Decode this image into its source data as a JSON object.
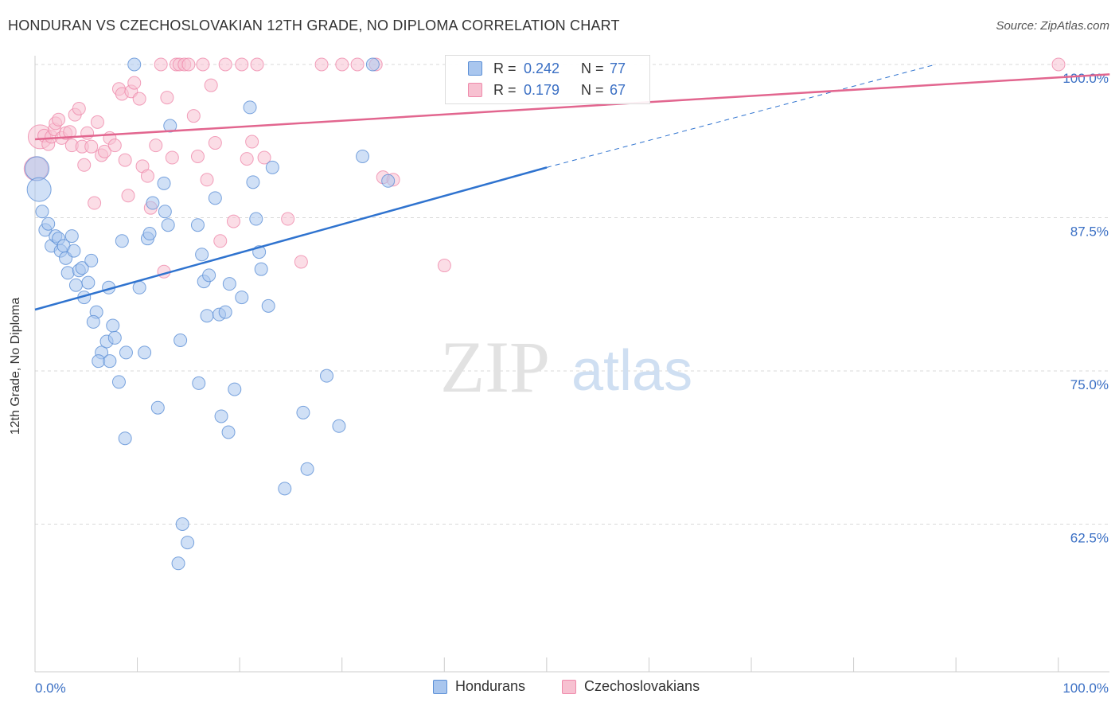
{
  "header": {
    "title": "HONDURAN VS CZECHOSLOVAKIAN 12TH GRADE, NO DIPLOMA CORRELATION CHART",
    "source": "Source: ZipAtlas.com"
  },
  "watermark": {
    "zip": "ZIP",
    "atlas": "atlas"
  },
  "stats": {
    "series": [
      {
        "r_label": "R =",
        "r_value": "0.242",
        "n_label": "N =",
        "n_value": "77",
        "color": "#5b8fd6"
      },
      {
        "r_label": "R =",
        "r_value": "0.179",
        "n_label": "N =",
        "n_value": "67",
        "color": "#ef8aab"
      }
    ]
  },
  "legend": {
    "items": [
      {
        "label": "Hondurans",
        "color": "#5b8fd6"
      },
      {
        "label": "Czechoslovakians",
        "color": "#ef8aab"
      }
    ]
  },
  "colors": {
    "blue_fill": "#a9c6ee",
    "blue_stroke": "#5b8fd6",
    "blue_line": "#2f73cf",
    "pink_fill": "#f7c1d1",
    "pink_stroke": "#ef8aab",
    "pink_line": "#e2668f",
    "tick_label": "#3a6fc4",
    "grid": "#d9d9d9"
  },
  "chart_data": {
    "type": "scatter",
    "title": "HONDURAN VS CZECHOSLOVAKIAN 12TH GRADE, NO DIPLOMA CORRELATION CHART",
    "xlabel": "",
    "ylabel": "12th Grade, No Diploma",
    "xlim": [
      0,
      105
    ],
    "ylim": [
      51.5,
      101.5
    ],
    "x_tick_labels": [
      "0.0%",
      "100.0%"
    ],
    "y_ticks": [
      62.5,
      75.0,
      87.5,
      100.0
    ],
    "y_tick_labels": [
      "62.5%",
      "75.0%",
      "87.5%",
      "100.0%"
    ],
    "grid": "horizontal dashed",
    "legend_position": "bottom-center",
    "series": [
      {
        "name": "Hondurans",
        "r": 0.242,
        "n": 77,
        "trend": {
          "x": [
            0,
            50
          ],
          "y": [
            80.0,
            91.6
          ]
        },
        "trend_extension": {
          "x": [
            50,
            88
          ],
          "y": [
            91.6,
            100.0
          ]
        },
        "points": [
          [
            0.2,
            91.5
          ],
          [
            0.4,
            89.8
          ],
          [
            0.7,
            88.0
          ],
          [
            1.0,
            86.5
          ],
          [
            1.3,
            87.0
          ],
          [
            1.6,
            85.2
          ],
          [
            2.0,
            86.0
          ],
          [
            2.3,
            85.8
          ],
          [
            2.5,
            84.8
          ],
          [
            2.8,
            85.2
          ],
          [
            3.0,
            84.2
          ],
          [
            3.2,
            83.0
          ],
          [
            3.6,
            86.0
          ],
          [
            3.8,
            84.8
          ],
          [
            4.0,
            82.0
          ],
          [
            4.3,
            83.2
          ],
          [
            4.6,
            83.4
          ],
          [
            4.8,
            81.0
          ],
          [
            5.2,
            82.2
          ],
          [
            5.5,
            84.0
          ],
          [
            6.0,
            79.8
          ],
          [
            6.5,
            76.5
          ],
          [
            6.2,
            75.8
          ],
          [
            5.7,
            79.0
          ],
          [
            7.2,
            81.8
          ],
          [
            7.0,
            77.4
          ],
          [
            7.3,
            75.8
          ],
          [
            7.6,
            78.7
          ],
          [
            7.8,
            77.7
          ],
          [
            8.2,
            74.1
          ],
          [
            8.8,
            69.5
          ],
          [
            8.9,
            76.5
          ],
          [
            8.5,
            85.6
          ],
          [
            10.7,
            76.5
          ],
          [
            10.2,
            81.8
          ],
          [
            11.0,
            85.8
          ],
          [
            11.2,
            86.2
          ],
          [
            11.5,
            88.7
          ],
          [
            12.0,
            72.0
          ],
          [
            12.6,
            90.3
          ],
          [
            12.7,
            88.0
          ],
          [
            13.0,
            86.9
          ],
          [
            13.2,
            95.0
          ],
          [
            14.2,
            77.5
          ],
          [
            14.4,
            62.5
          ],
          [
            14.9,
            61.0
          ],
          [
            14.0,
            59.3
          ],
          [
            15.9,
            86.9
          ],
          [
            16.0,
            74.0
          ],
          [
            16.3,
            84.5
          ],
          [
            16.5,
            82.3
          ],
          [
            16.8,
            79.5
          ],
          [
            17.0,
            82.8
          ],
          [
            17.6,
            89.1
          ],
          [
            18.0,
            79.6
          ],
          [
            18.2,
            71.3
          ],
          [
            18.6,
            79.8
          ],
          [
            18.9,
            70.0
          ],
          [
            19.5,
            73.5
          ],
          [
            19.0,
            82.1
          ],
          [
            20.2,
            81.0
          ],
          [
            21.0,
            96.5
          ],
          [
            21.3,
            90.4
          ],
          [
            21.6,
            87.4
          ],
          [
            21.9,
            84.7
          ],
          [
            22.1,
            83.3
          ],
          [
            22.8,
            80.3
          ],
          [
            23.2,
            91.6
          ],
          [
            24.4,
            65.4
          ],
          [
            26.2,
            71.6
          ],
          [
            26.6,
            67.0
          ],
          [
            28.5,
            74.6
          ],
          [
            29.7,
            70.5
          ],
          [
            32.0,
            92.5
          ],
          [
            33.0,
            100.0
          ],
          [
            34.5,
            90.5
          ],
          [
            9.7,
            100.0
          ]
        ]
      },
      {
        "name": "Czechoslovakians",
        "r": 0.179,
        "n": 67,
        "trend": {
          "x": [
            0,
            105
          ],
          "y": [
            93.9,
            99.2
          ]
        },
        "points": [
          [
            0.1,
            91.5
          ],
          [
            0.5,
            94.1
          ],
          [
            0.9,
            94.2
          ],
          [
            1.3,
            93.5
          ],
          [
            1.6,
            94.1
          ],
          [
            1.9,
            94.7
          ],
          [
            2.0,
            95.2
          ],
          [
            2.3,
            95.5
          ],
          [
            2.6,
            94.0
          ],
          [
            3.0,
            94.4
          ],
          [
            3.4,
            94.5
          ],
          [
            3.6,
            93.4
          ],
          [
            3.9,
            95.9
          ],
          [
            4.3,
            96.4
          ],
          [
            4.6,
            93.3
          ],
          [
            4.8,
            91.8
          ],
          [
            5.1,
            94.4
          ],
          [
            5.5,
            93.3
          ],
          [
            5.8,
            88.7
          ],
          [
            6.1,
            95.3
          ],
          [
            6.5,
            92.6
          ],
          [
            6.8,
            92.9
          ],
          [
            7.3,
            94.0
          ],
          [
            7.8,
            93.4
          ],
          [
            8.2,
            98.0
          ],
          [
            8.5,
            97.6
          ],
          [
            8.8,
            92.2
          ],
          [
            9.1,
            89.3
          ],
          [
            9.4,
            97.8
          ],
          [
            9.7,
            98.5
          ],
          [
            10.2,
            97.2
          ],
          [
            10.5,
            91.7
          ],
          [
            11.0,
            90.9
          ],
          [
            11.3,
            88.3
          ],
          [
            11.8,
            93.4
          ],
          [
            12.3,
            100.0
          ],
          [
            12.6,
            83.1
          ],
          [
            12.9,
            97.3
          ],
          [
            13.4,
            92.4
          ],
          [
            13.8,
            100.0
          ],
          [
            14.1,
            100.0
          ],
          [
            14.6,
            100.0
          ],
          [
            15.0,
            100.0
          ],
          [
            15.5,
            95.8
          ],
          [
            15.9,
            92.5
          ],
          [
            16.4,
            100.0
          ],
          [
            16.8,
            90.6
          ],
          [
            17.2,
            98.3
          ],
          [
            17.6,
            93.6
          ],
          [
            18.1,
            85.6
          ],
          [
            18.6,
            100.0
          ],
          [
            19.4,
            87.2
          ],
          [
            20.2,
            100.0
          ],
          [
            20.7,
            92.3
          ],
          [
            21.2,
            93.7
          ],
          [
            21.7,
            100.0
          ],
          [
            22.4,
            92.4
          ],
          [
            24.7,
            87.4
          ],
          [
            26.0,
            83.9
          ],
          [
            28.0,
            100.0
          ],
          [
            30.0,
            100.0
          ],
          [
            31.5,
            100.0
          ],
          [
            33.3,
            100.0
          ],
          [
            34.0,
            90.8
          ],
          [
            35.0,
            90.6
          ],
          [
            40.0,
            83.6
          ],
          [
            100.0,
            100.0
          ]
        ]
      }
    ]
  }
}
